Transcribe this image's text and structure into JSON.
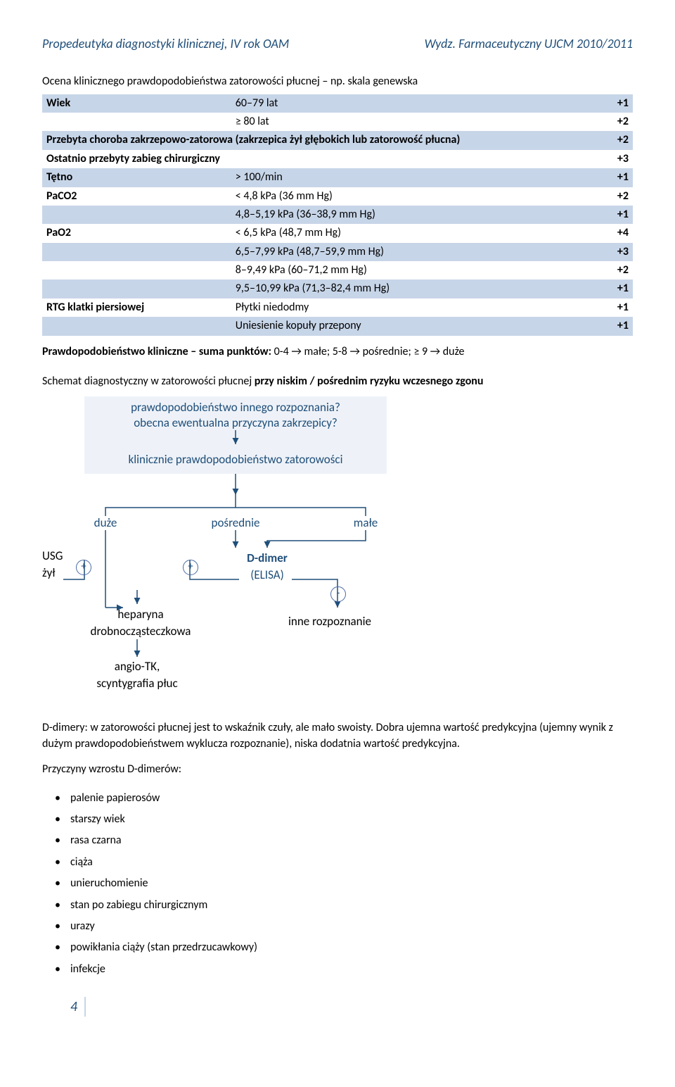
{
  "header": {
    "left": "Propedeutyka diagnostyki klinicznej, IV rok OAM",
    "right": "Wydz. Farmaceutyczny UJCM 2010/2011"
  },
  "section_title": "Ocena klinicznego prawdopodobieństwa zatorowości płucnej – np. skala genewska",
  "table": {
    "rows": [
      {
        "c0": "Wiek",
        "c1": "60–79 lat",
        "c2": "+1",
        "cls": "blue-row"
      },
      {
        "c0": "",
        "c1": "≥ 80 lat",
        "c2": "+2",
        "cls": "white-row light"
      },
      {
        "c0": "Przebyta choroba zakrzepowo-zatorowa (zakrzepica żył głębokich lub zatorowość płucna)",
        "c1": "",
        "c2": "+2",
        "cls": "blue-row",
        "span": true
      },
      {
        "c0": "Ostatnio przebyty zabieg chirurgiczny",
        "c1": "",
        "c2": "+3",
        "cls": "white-row",
        "span": true
      },
      {
        "c0": "Tętno",
        "c1": "> 100/min",
        "c2": "+1",
        "cls": "blue-row"
      },
      {
        "c0": "PaCO2",
        "c1": "< 4,8 kPa (36 mm Hg)",
        "c2": "+2",
        "cls": "white-row"
      },
      {
        "c0": "",
        "c1": "4,8–5,19 kPa (36–38,9 mm Hg)",
        "c2": "+1",
        "cls": "blue-row light"
      },
      {
        "c0": "PaO2",
        "c1": "< 6,5 kPa (48,7 mm Hg)",
        "c2": "+4",
        "cls": "white-row"
      },
      {
        "c0": "",
        "c1": "6,5–7,99 kPa (48,7–59,9 mm Hg)",
        "c2": "+3",
        "cls": "blue-row light"
      },
      {
        "c0": "",
        "c1": "8–9,49 kPa (60–71,2 mm Hg)",
        "c2": "+2",
        "cls": "white-row light"
      },
      {
        "c0": "",
        "c1": "9,5–10,99 kPa (71,3–82,4 mm Hg)",
        "c2": "+1",
        "cls": "blue-row light"
      },
      {
        "c0": "RTG klatki piersiowej",
        "c1": "Płytki niedodmy",
        "c2": "+1",
        "cls": "white-row"
      },
      {
        "c0": "",
        "c1": "Uniesienie kopuły przepony",
        "c2": "+1",
        "cls": "blue-row light"
      }
    ]
  },
  "after_table": "Prawdopodobieństwo kliniczne – suma punktów: 0-4 → małe; 5-8 → pośrednie; ≥ 9 → duże",
  "subhead_a": "Schemat diagnostyczny w zatorowości płucnej ",
  "subhead_b": "przy niskim / pośrednim ryzyku wczesnego zgonu",
  "diagram": {
    "q1": "prawdopodobieństwo innego rozpoznania?",
    "q2": "obecna ewentualna przyczyna zakrzepicy?",
    "q3": "klinicznie prawdopodobieństwo zatorowości",
    "duze": "duże",
    "posrednie": "pośrednie",
    "male": "małe",
    "usg": "USG",
    "zyl": "żył",
    "ddimer": "D-dimer",
    "elisa": "(ELISA)",
    "heparyna1": "heparyna",
    "heparyna2": "drobnocząsteczkowa",
    "angio1": "angio-TK,",
    "angio2": "scyntygrafia płuc",
    "inne": "inne rozpoznanie",
    "plus": "+",
    "minus": "-"
  },
  "para1": "D-dimery: w zatorowości płucnej jest to wskaźnik czuły, ale mało swoisty. Dobra ujemna wartość predykcyjna (ujemny wynik z dużym prawdopodobieństwem wyklucza rozpoznanie), niska dodatnia wartość predykcyjna.",
  "para2": "Przyczyny wzrostu D-dimerów:",
  "bullets": [
    "palenie papierosów",
    "starszy wiek",
    "rasa czarna",
    "ciąża",
    "unieruchomienie",
    "stan po zabiegu chirurgicznym",
    "urazy",
    "powikłania ciąży (stan przedrzucawkowy)",
    "infekcje"
  ],
  "page": "4"
}
